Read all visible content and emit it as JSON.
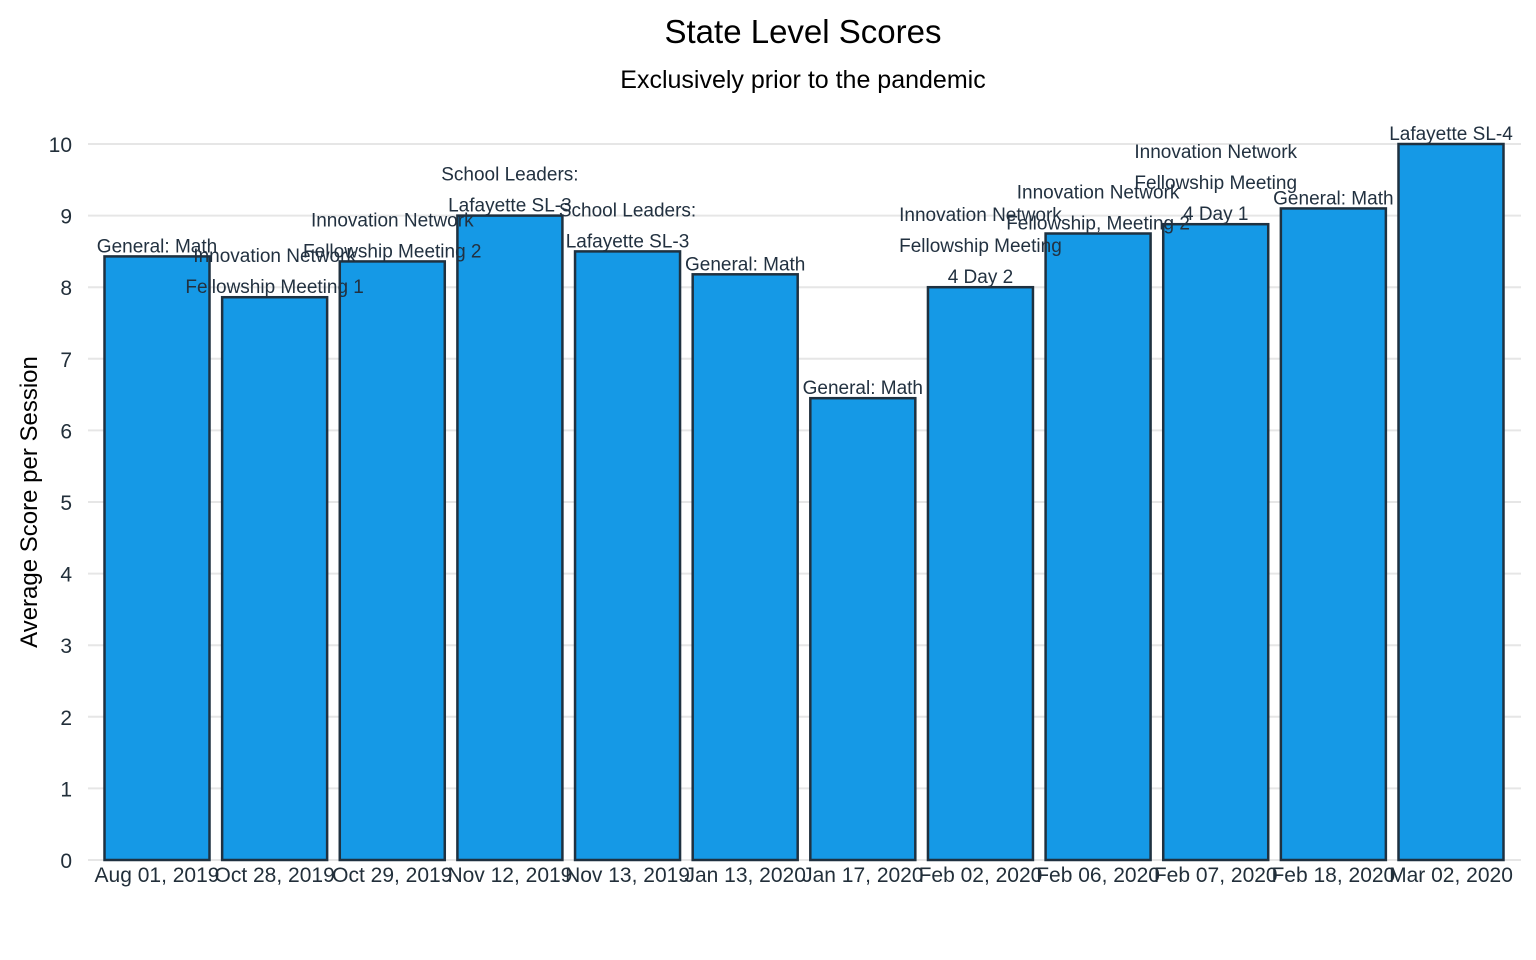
{
  "chart_data": {
    "type": "bar",
    "title": "State Level Scores",
    "subtitle": "Exclusively prior to the pandemic",
    "xlabel": "",
    "ylabel": "Average Score per Session",
    "ylim": [
      0,
      10
    ],
    "yticks": [
      "0",
      "1",
      "2",
      "3",
      "4",
      "5",
      "6",
      "7",
      "8",
      "9",
      "10"
    ],
    "grid": "horizontal",
    "legend": "none",
    "bar_color": "#1599e6",
    "bar_outline_color": "#1f3140",
    "categories": [
      "Aug 01, 2019",
      "Oct 28, 2019",
      "Oct 29, 2019",
      "Nov 12, 2019",
      "Nov 13, 2019",
      "Jan 13, 2020",
      "Jan 17, 2020",
      "Feb 02, 2020",
      "Feb 06, 2020",
      "Feb 07, 2020",
      "Feb 18, 2020",
      "Mar 02, 2020"
    ],
    "values": [
      8.43,
      7.86,
      8.36,
      9.0,
      8.5,
      8.18,
      6.45,
      8.0,
      8.75,
      8.88,
      9.1,
      10.0
    ],
    "bar_labels": [
      [
        "General: Math"
      ],
      [
        "Innovation Network",
        "Fellowship Meeting 1"
      ],
      [
        "Innovation Network",
        "Fellowship Meeting 2"
      ],
      [
        "School Leaders:",
        "Lafayette SL-3"
      ],
      [
        "School Leaders:",
        "Lafayette SL-3"
      ],
      [
        "General: Math"
      ],
      [
        "General: Math"
      ],
      [
        "Innovation Network",
        "Fellowship Meeting",
        "4 Day 2"
      ],
      [
        "Innovation Network",
        "Fellowship, Meeting 2"
      ],
      [
        "Innovation Network",
        "Fellowship Meeting",
        "4 Day 1"
      ],
      [
        "General: Math"
      ],
      [
        "Lafayette SL-4"
      ]
    ]
  }
}
